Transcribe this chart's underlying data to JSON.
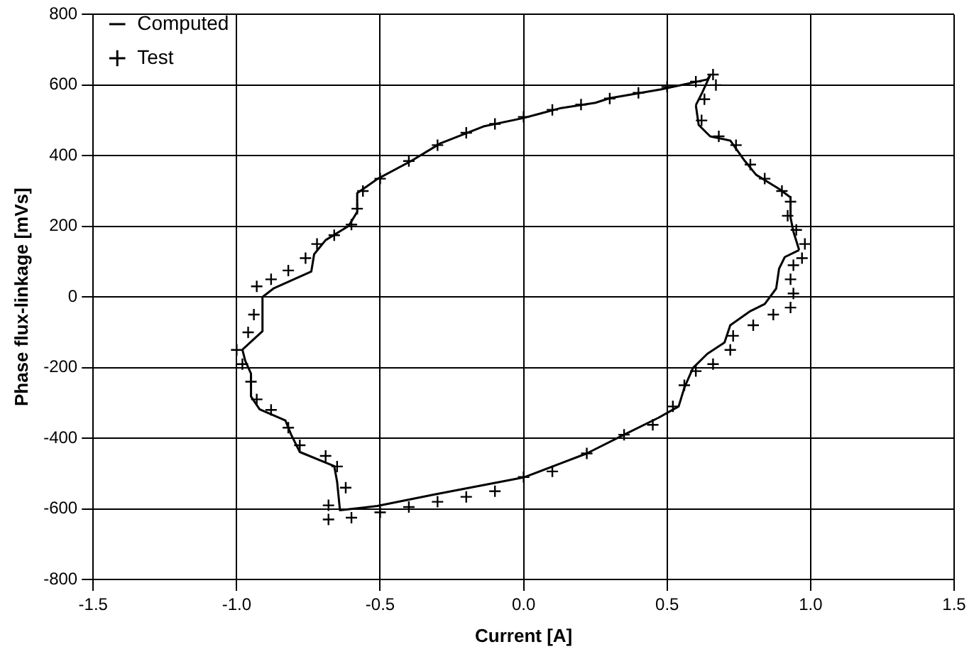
{
  "chart_data": {
    "type": "scatter",
    "xlabel": "Current [A]",
    "ylabel": "Phase flux-linkage [mVs]",
    "xlim": [
      -1.5,
      1.5
    ],
    "xticks": [
      {
        "value": -1.5,
        "label": "-1.5"
      },
      {
        "value": -1,
        "label": "-1.0"
      },
      {
        "value": -0.5,
        "label": "-0.5"
      },
      {
        "value": 0,
        "label": "0.0"
      },
      {
        "value": 0.5,
        "label": "0.5"
      },
      {
        "value": 1,
        "label": "1.0"
      },
      {
        "value": 1.5,
        "label": "1.5"
      }
    ],
    "ylim": [
      -800,
      800
    ],
    "yticks": [
      -800,
      -600,
      -400,
      -200,
      0,
      200,
      400,
      600,
      800
    ],
    "grid": true,
    "legend": "top left",
    "series": [
      {
        "name": "Computed",
        "type": "line",
        "color": "#000000",
        "marker": "none",
        "line_style": "solid",
        "x": [
          -0.91,
          -0.87,
          -0.74,
          -0.73,
          -0.69,
          -0.61,
          -0.58,
          -0.58,
          -0.51,
          -0.39,
          -0.29,
          -0.14,
          0,
          0.13,
          0.25,
          0.3,
          0.48,
          0.64,
          0.65
        ],
        "values": [
          0,
          25,
          72,
          121,
          161,
          201,
          241,
          294,
          334,
          386,
          435,
          483,
          507,
          535,
          550,
          563,
          588,
          616,
          628
        ]
      },
      {
        "type": "line",
        "color": "#000000",
        "marker": "none",
        "line_style": "solid",
        "x": [
          0.65,
          0.62,
          0.6
        ],
        "values": [
          628,
          575,
          543
        ]
      },
      {
        "type": "line",
        "color": "#000000",
        "marker": "none",
        "line_style": "solid",
        "x": [
          0.6,
          0.61,
          0.65,
          0.72,
          0.77,
          0.81,
          0.89,
          0.93,
          0.93,
          0.94,
          0.96
        ],
        "values": [
          543,
          487,
          455,
          443,
          386,
          346,
          306,
          282,
          225,
          185,
          133
        ]
      },
      {
        "type": "line",
        "color": "#000000",
        "marker": "none",
        "line_style": "solid",
        "x": [
          0.96,
          0.91,
          0.89,
          0.88,
          0.84,
          0.79,
          0.72,
          0.7,
          0.64,
          0.59,
          0.56,
          0.54,
          0.47,
          0.35,
          0.22,
          0.13,
          0,
          -0.31,
          -0.51,
          -0.64,
          -0.65,
          -0.66,
          -0.78,
          -0.81,
          -0.83,
          -0.92,
          -0.95,
          -0.95,
          -0.97,
          -0.98
        ],
        "values": [
          133,
          113,
          80,
          24,
          -20,
          -40,
          -80,
          -129,
          -161,
          -201,
          -257,
          -310,
          -342,
          -390,
          -443,
          -471,
          -511,
          -559,
          -592,
          -604,
          -523,
          -479,
          -439,
          -390,
          -350,
          -318,
          -282,
          -217,
          -181,
          -149
        ]
      },
      {
        "type": "line",
        "color": "#000000",
        "marker": "none",
        "line_style": "solid",
        "x": [
          -0.98,
          -0.91,
          -0.91,
          -0.91
        ],
        "values": [
          -149,
          -97,
          -56,
          0
        ]
      },
      {
        "name": "Test",
        "type": "scatter",
        "color": "#000000",
        "marker": "cross",
        "x": [
          -0.93,
          -0.88,
          -0.82,
          -0.76,
          -0.72,
          -0.66,
          -0.6,
          -0.58,
          -0.56,
          -0.5,
          -0.4,
          -0.3,
          -0.2,
          -0.1,
          0,
          0.1,
          0.2,
          0.3,
          0.4,
          0.5,
          0.6,
          0.66,
          0.67,
          0.63,
          0.62,
          0.68,
          0.74,
          0.79,
          0.84,
          0.9,
          0.93,
          0.92,
          0.95,
          0.98,
          0.97,
          0.94,
          0.93,
          0.94,
          0.93,
          0.87,
          0.8,
          0.73,
          0.72,
          0.66,
          0.6,
          0.56,
          0.52,
          0.45,
          0.35,
          0.22,
          0.1,
          0,
          -0.1,
          -0.2,
          -0.3,
          -0.4,
          -0.5,
          -0.6,
          -0.68,
          -0.68,
          -0.62,
          -0.65,
          -0.69,
          -0.78,
          -0.82,
          -0.88,
          -0.93,
          -0.95,
          -0.98,
          -1.0,
          -0.96,
          -0.94
        ],
        "values": [
          30,
          50,
          75,
          110,
          150,
          175,
          205,
          250,
          300,
          335,
          385,
          430,
          465,
          490,
          510,
          530,
          545,
          562,
          578,
          595,
          610,
          630,
          600,
          560,
          500,
          455,
          430,
          375,
          335,
          300,
          270,
          230,
          190,
          150,
          110,
          90,
          50,
          10,
          -30,
          -50,
          -80,
          -110,
          -150,
          -190,
          -210,
          -250,
          -310,
          -362,
          -390,
          -443,
          -494,
          -510,
          -550,
          -566,
          -580,
          -595,
          -610,
          -625,
          -630,
          -590,
          -540,
          -480,
          -450,
          -420,
          -370,
          -320,
          -290,
          -240,
          -190,
          -150,
          -100,
          -50
        ]
      }
    ]
  }
}
